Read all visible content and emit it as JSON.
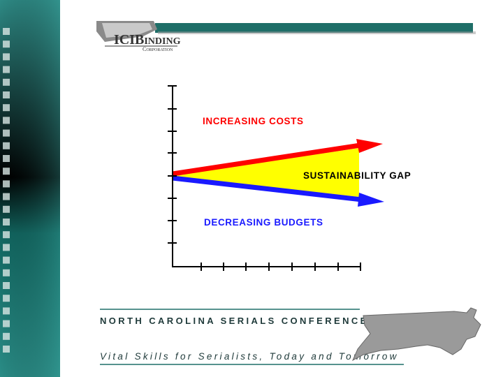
{
  "logo": {
    "name": "ICIBinding",
    "subtitle": "Corporation"
  },
  "diagram": {
    "top_label": "INCREASING COSTS",
    "gap_label": "SUSTAINABILITY GAP",
    "bottom_label": "DECREASING BUDGETS"
  },
  "footer": {
    "conference": "NORTH CAROLINA SERIALS CONFERENCE",
    "tagline": "Vital Skills for Serialists, Today and Tomorrow"
  }
}
